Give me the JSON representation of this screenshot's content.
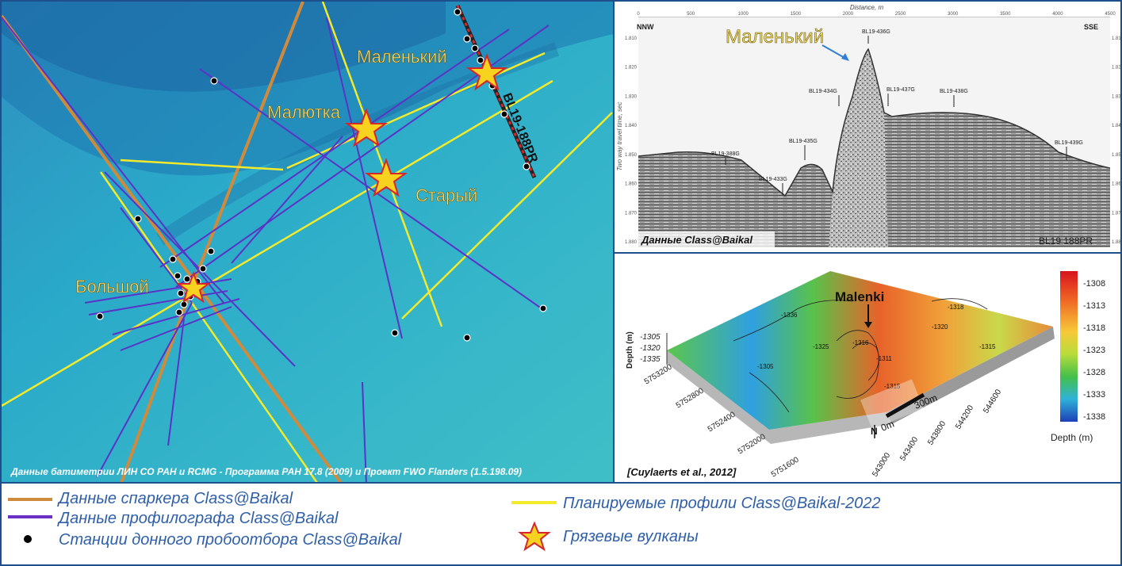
{
  "map": {
    "volcanoes": [
      {
        "label": "Маленький"
      },
      {
        "label": "Малютка"
      },
      {
        "label": "Старый"
      },
      {
        "label": "Большой"
      }
    ],
    "profile_label": "BL19-188PR",
    "credit": "Данные батиметрии ЛИН СО РАН и RCMG - Программа РАН 17.8 (2009) и Проект FWO Flanders (1.5.198.09)"
  },
  "seismic": {
    "axis_title": "Distance, m",
    "x_ticks": [
      "0",
      "500",
      "1000",
      "1500",
      "2000",
      "2500",
      "3000",
      "3500",
      "4000",
      "4500"
    ],
    "y_ticks_left": [
      "1.810",
      "1.820",
      "1.830",
      "1.840",
      "1.850",
      "1.860",
      "1.870",
      "1.880"
    ],
    "y_ticks_right": [
      "1.810",
      "1.820",
      "1.830",
      "1.840",
      "1.850",
      "1.860",
      "1.870",
      "1.880"
    ],
    "y_label": "Two way travel time, sec",
    "left_dir": "NNW",
    "right_dir": "SSE",
    "volcano_label": "Маленький",
    "cores": [
      "BL19-436G",
      "BL19-434G",
      "BL19-437G",
      "BL19-438G",
      "BL19-435G",
      "BL19-388G",
      "BL19-433G",
      "BL19-439G"
    ],
    "source": "Данные Class@Baikal",
    "profile": "BL19  188PR"
  },
  "model": {
    "label": "Malenki",
    "z_label": "Depth (m)",
    "z_ticks": [
      "-1305",
      "-1320",
      "-1335"
    ],
    "northing": [
      "5753200",
      "5752800",
      "5752400",
      "5752000",
      "5751600"
    ],
    "easting": [
      "543000",
      "543400",
      "543800",
      "544200",
      "544600"
    ],
    "scale_start": "0m",
    "scale_end": "300m",
    "north": "N",
    "contours": [
      "-1336",
      "-1320",
      "-1316",
      "-1318",
      "-1311",
      "-1315",
      "-1305",
      "-1325",
      "-1315"
    ],
    "colorbar_ticks": [
      "-1308",
      "-1313",
      "-1318",
      "-1323",
      "-1328",
      "-1333",
      "-1338"
    ],
    "colorbar_title": "Depth (m)",
    "citation": "[Cuylaerts et al., 2012]"
  },
  "legend": {
    "items": [
      {
        "label": "Данные спаркера Class@Baikal",
        "color": "#d08a3c",
        "icon": "line"
      },
      {
        "label": "Данные профилографа  Class@Baikal",
        "color": "#6a2fc4",
        "icon": "line"
      },
      {
        "label": "Станции донного пробоотбора Class@Baikal",
        "color": "#000000",
        "icon": "dot"
      },
      {
        "label": "Планируемые профили  Class@Baikal-2022",
        "color": "#f2ea2a",
        "icon": "line"
      },
      {
        "label": "Грязевые вулканы",
        "color": "#f7d21e",
        "icon": "star-icon"
      }
    ]
  }
}
